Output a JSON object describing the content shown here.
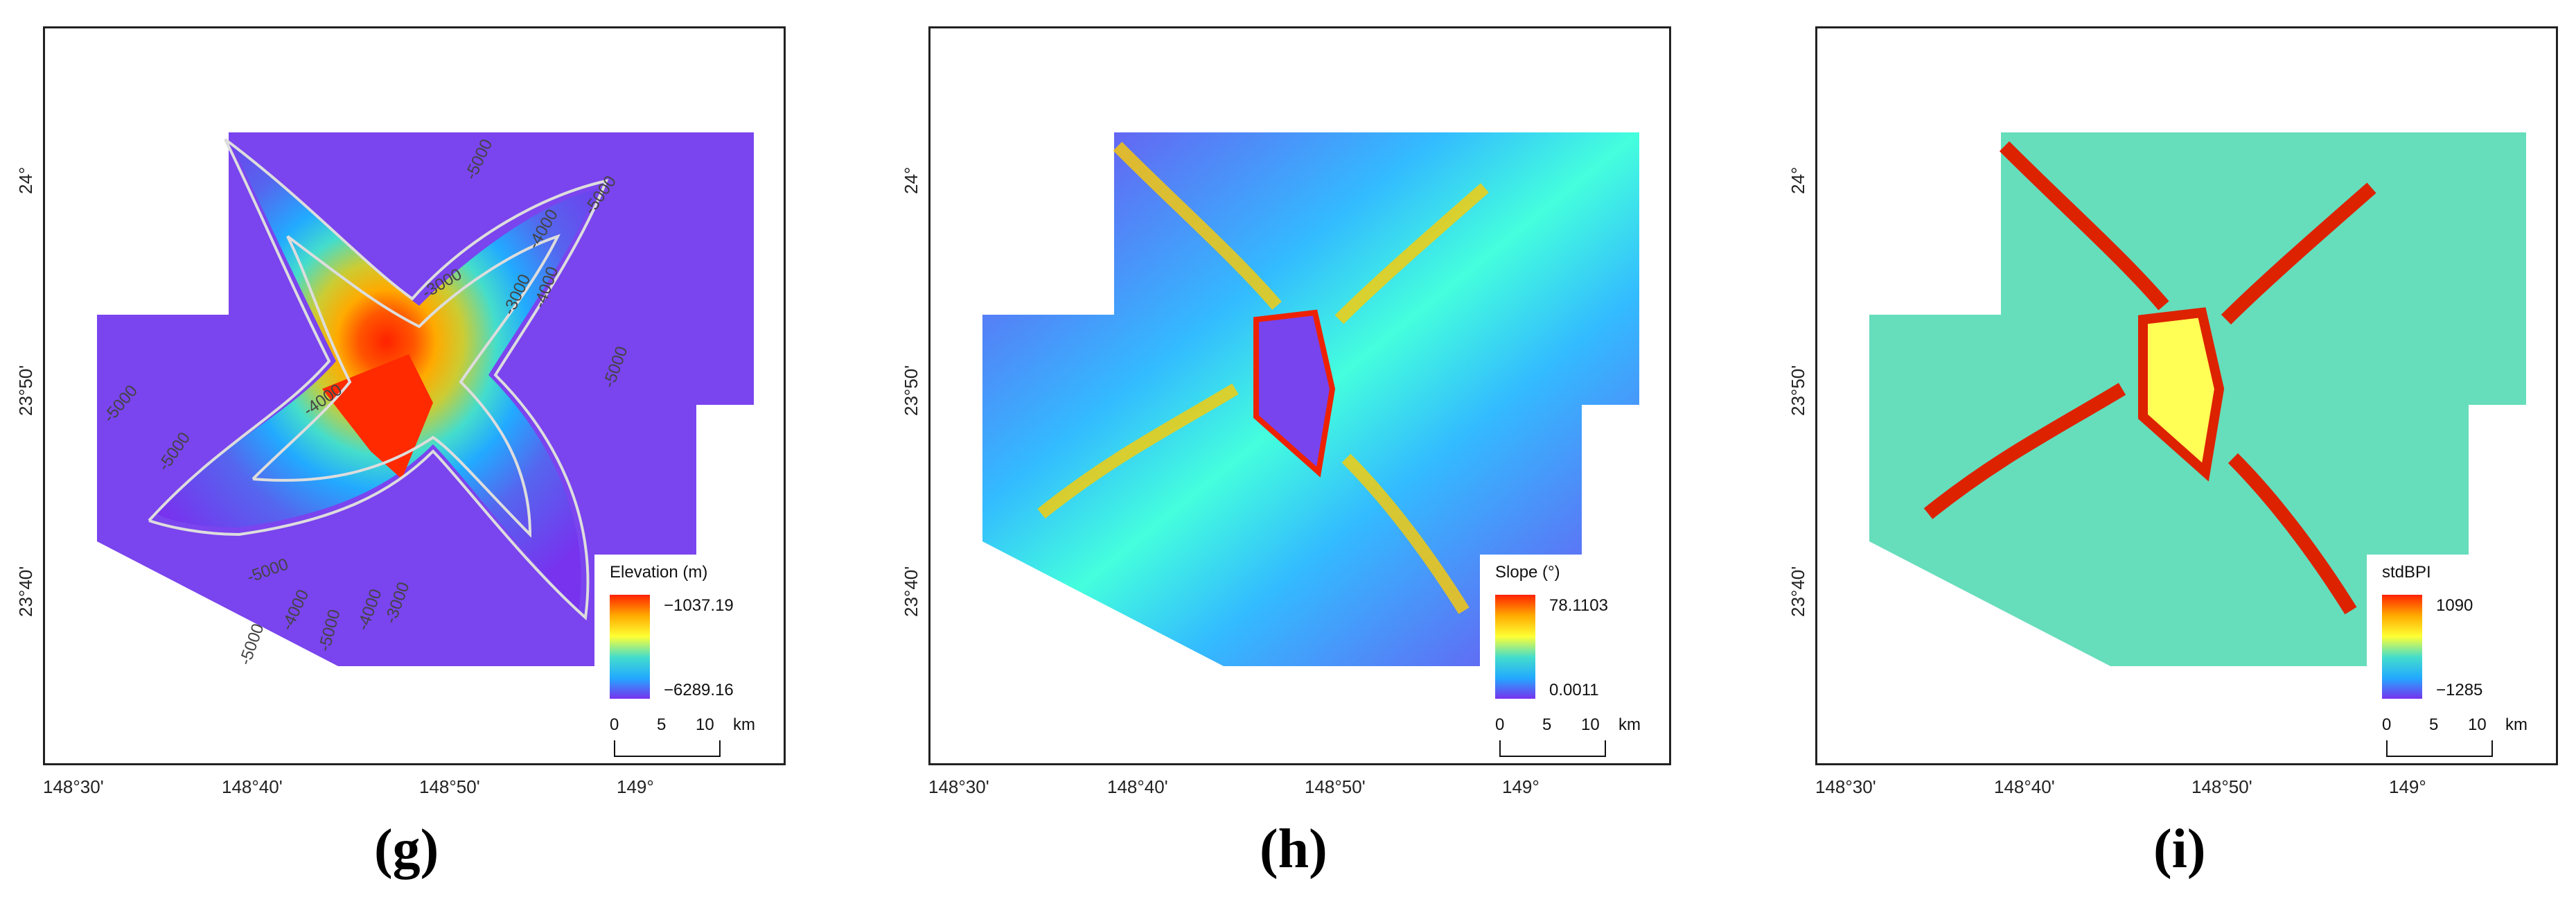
{
  "panels": [
    {
      "id": "g",
      "caption": "(g)",
      "legend": {
        "title": "Elevation (m)",
        "max": "−1037.19",
        "min": "−6289.16"
      },
      "contours": [
        "-5000",
        "-5000",
        "-3000",
        "-3000",
        "-4000",
        "-4000",
        "-4000",
        "-5000",
        "-5000",
        "-5000",
        "-5000",
        "-4000",
        "-3000",
        "-5000",
        "-4000",
        "-5000"
      ],
      "colors": {
        "ramp": [
          "#ff2200",
          "#ffaa00",
          "#ffff33",
          "#44ddcc",
          "#22aaff",
          "#7733ee"
        ]
      }
    },
    {
      "id": "h",
      "caption": "(h)",
      "legend": {
        "title": "Slope (°)",
        "max": "78.1103",
        "min": "0.0011"
      }
    },
    {
      "id": "i",
      "caption": "(i)",
      "legend": {
        "title": "stdBPI",
        "max": "1090",
        "min": "−1285"
      }
    }
  ],
  "axes": {
    "longitude_ticks": [
      "148°30'",
      "148°40'",
      "148°50'",
      "149°"
    ],
    "latitude_ticks": [
      "24°",
      "23°50'",
      "23°40'"
    ]
  },
  "scale": {
    "ticks": [
      "0",
      "5",
      "10"
    ],
    "unit": "km"
  }
}
